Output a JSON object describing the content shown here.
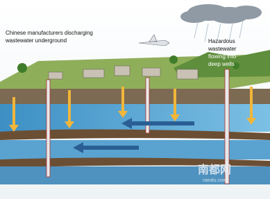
{
  "annotations": {
    "left": {
      "lines": [
        "Chinese manufacturers discharging",
        "wastewater underground"
      ]
    },
    "right": {
      "lines": [
        "Hazardous",
        "wastewater",
        "flowing into",
        "deep wells"
      ]
    }
  },
  "watermark": {
    "name": "南都网",
    "site": "nandu.com"
  }
}
